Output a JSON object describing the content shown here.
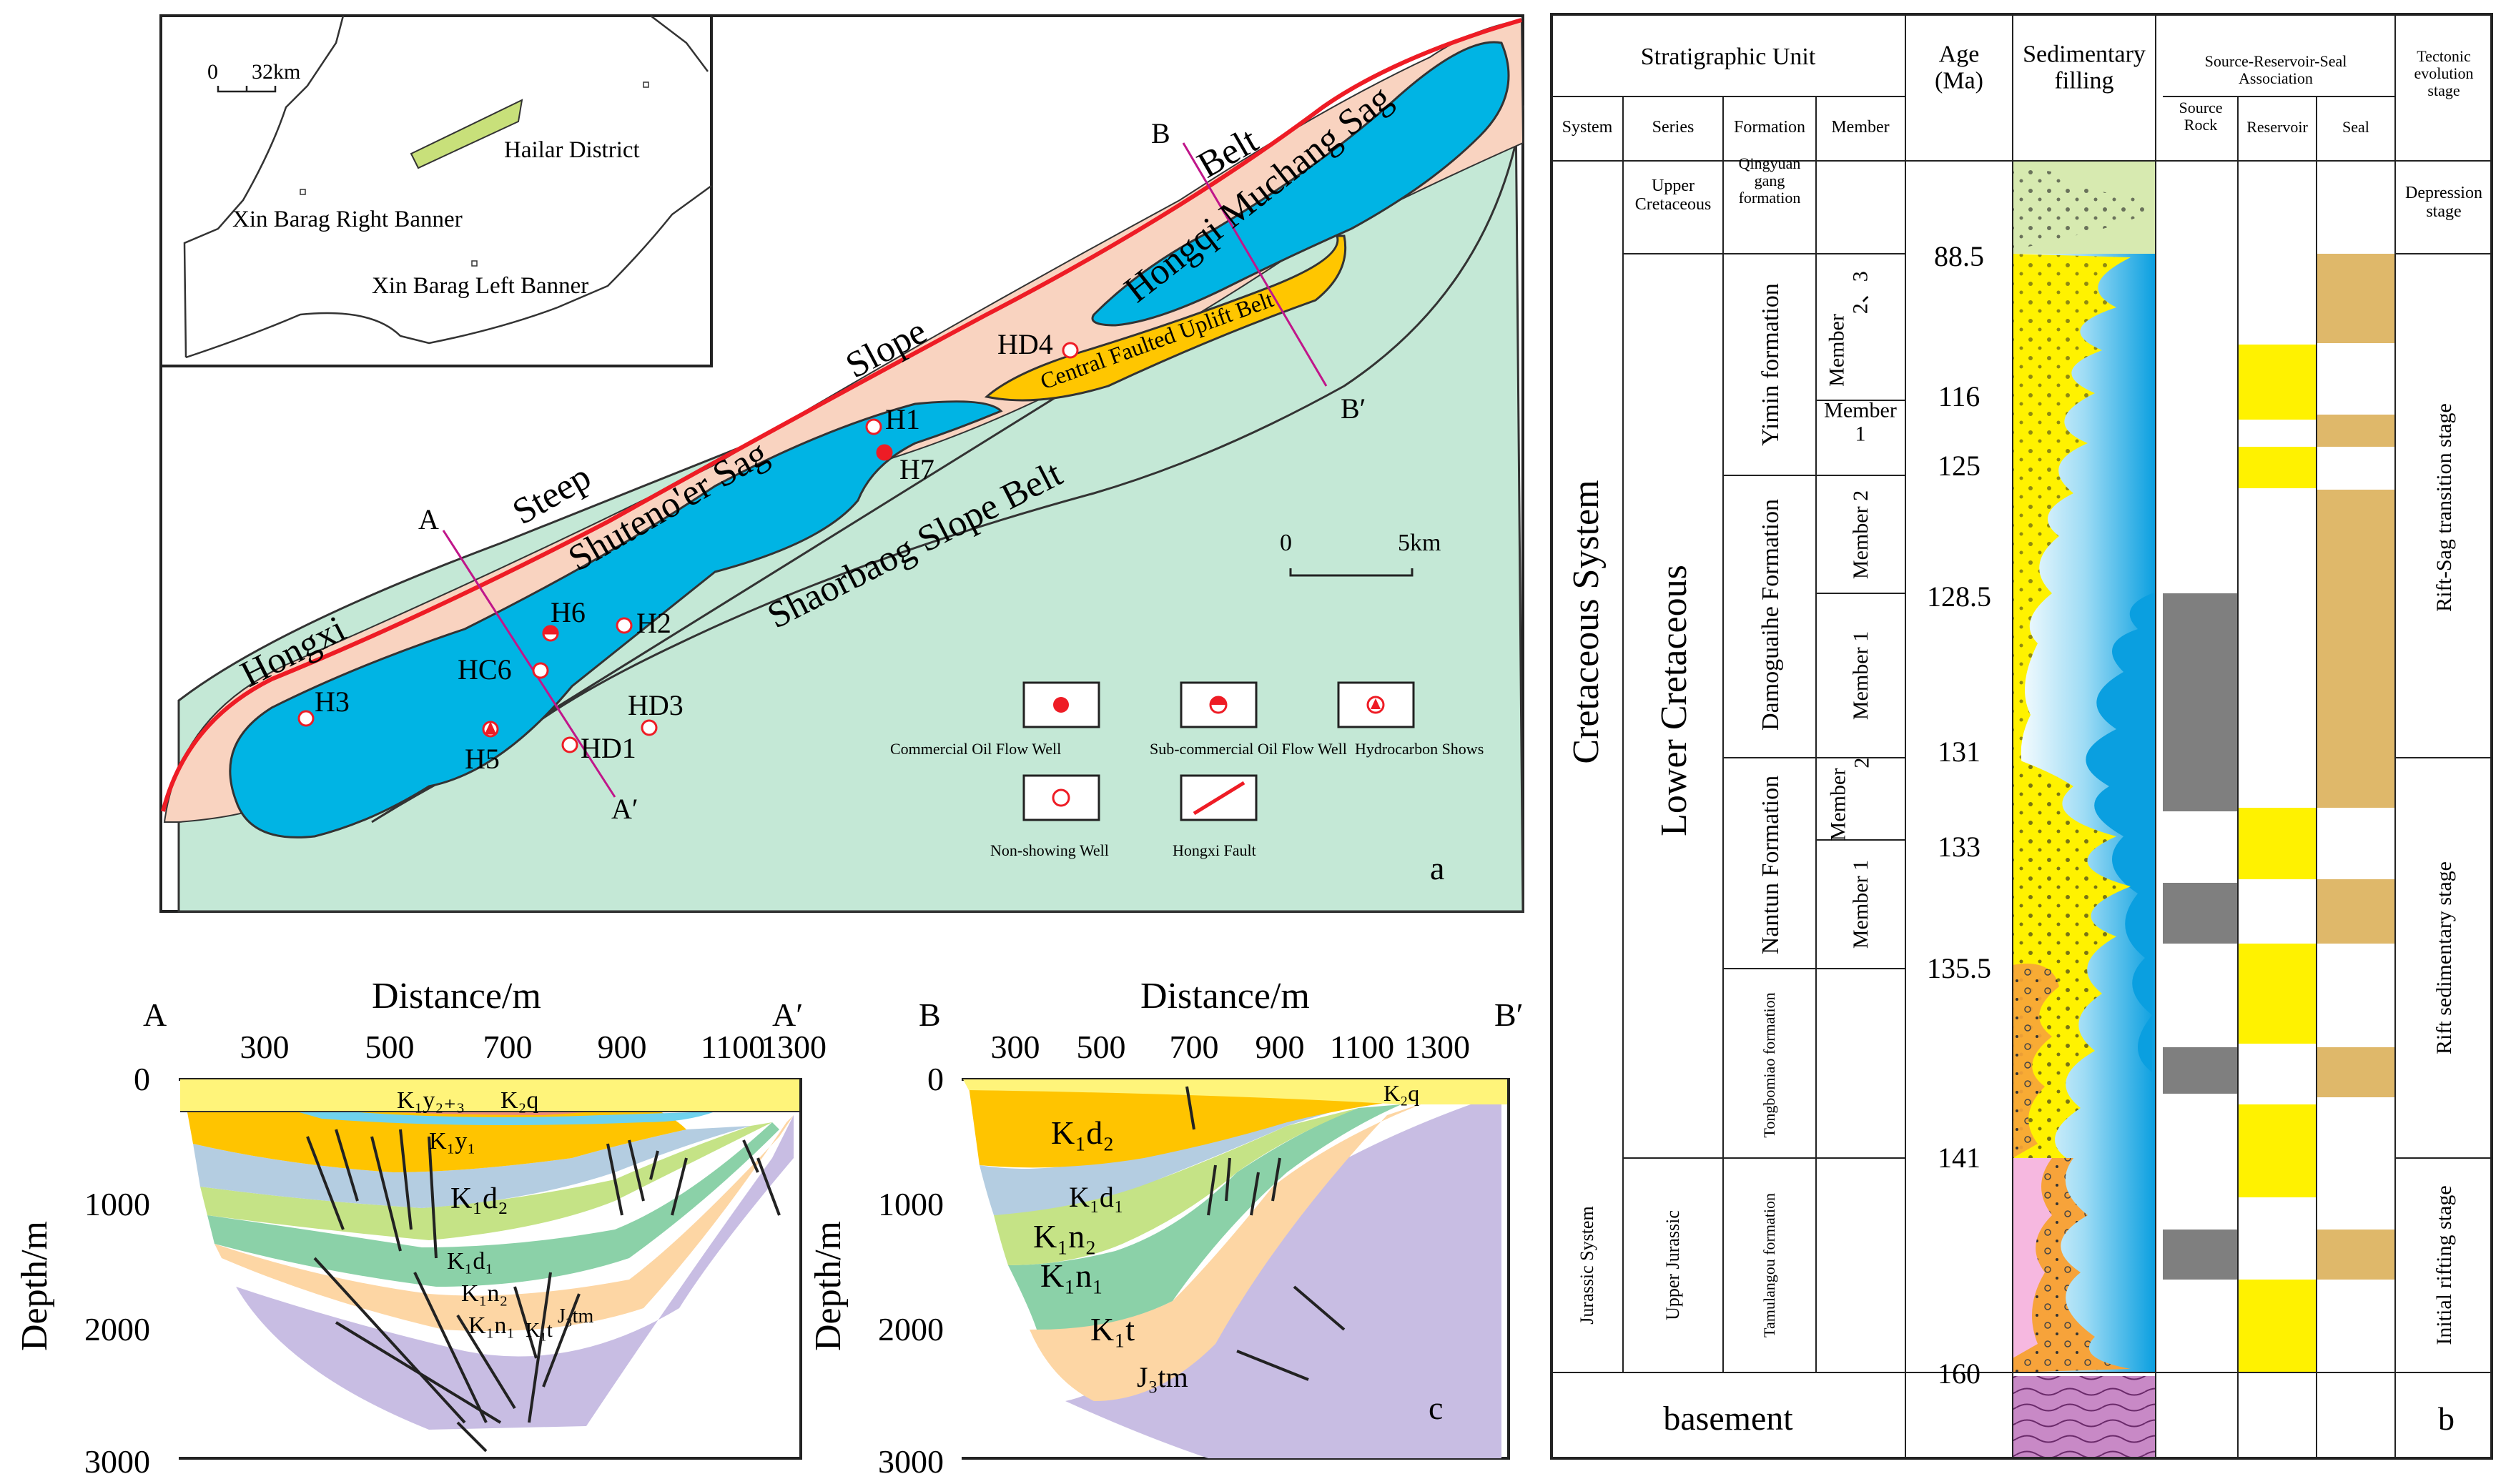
{
  "colors": {
    "steep_slope": "#f9d3c0",
    "sag": "#00b4e4",
    "uplift": "#ffc600",
    "slope_belt": "#c4e8d6",
    "fault": "#ee1c25",
    "section_line": "#c0168a",
    "district": "#c8e07a",
    "source_rock": "#7f7f7f",
    "reservoir": "#fff200",
    "seal": "#dfb86a"
  },
  "map": {
    "panel_label": "a",
    "inset_scale": [
      "0",
      "32km"
    ],
    "inset_places": [
      "Hailar District",
      "Xin Barag Right Banner",
      "Xin Barag Left Banner"
    ],
    "scale": [
      "0",
      "5km"
    ],
    "belt_labels": {
      "hongxi": "Hongxi",
      "steep": "Steep",
      "slope": "Slope",
      "belt": "Belt",
      "shuteno": "Shuteno'er Sag",
      "hongqi": "Hongqi Muchang Sag",
      "uplift": "Central Faulted Uplift Belt",
      "shaorbaog": "Shaorbaog Slope Belt"
    },
    "section_ends": {
      "a": "A",
      "a_prime": "A′",
      "b": "B",
      "b_prime": "B′"
    },
    "wells": {
      "h1": "H1",
      "h7": "H7",
      "h6": "H6",
      "h2": "H2",
      "h3": "H3",
      "h5": "H5",
      "hc6": "HC6",
      "hd1": "HD1",
      "hd3": "HD3",
      "hd4": "HD4"
    },
    "legend": {
      "commercial": "Commercial Oil Flow Well",
      "subcommercial": "Sub-commercial Oil Flow Well",
      "shows": "Hydrocarbon Shows",
      "nonshowing": "Non-showing Well",
      "fault": "Hongxi Fault"
    }
  },
  "sections": {
    "panel_label": "c",
    "xlabel": "Distance/m",
    "ylabel": "Depth/m",
    "xticks": [
      "300",
      "500",
      "700",
      "900",
      "1100",
      "1300"
    ],
    "yticks": [
      "0",
      "1000",
      "2000",
      "3000"
    ],
    "aa": {
      "start": "A",
      "end": "A′",
      "units": [
        "K₁y₂₊₃",
        "K₂q",
        "K₁y₁",
        "K₁d₂",
        "K₁d₁",
        "K₁n₂",
        "K₁n₁",
        "K₁t",
        "J₃tm"
      ]
    },
    "bb": {
      "start": "B",
      "end": "B′",
      "units": [
        "K₂q",
        "K₁d₂",
        "K₁d₁",
        "K₁n₂",
        "K₁n₁",
        "K₁t",
        "J₃tm"
      ]
    }
  },
  "column": {
    "panel_label": "b",
    "headers": {
      "strat_unit": "Stratigraphic Unit",
      "system": "System",
      "series": "Series",
      "formation": "Formation",
      "member": "Member",
      "age": "Age\n(Ma)",
      "filling": "Sedimentary\nfilling",
      "srs": "Source-Reservoir-Seal\nAssociation",
      "source": "Source\nRock",
      "reservoir": "Reservoir",
      "seal": "Seal",
      "tectonic": "Tectonic\nevolution\nstage"
    },
    "systems": [
      "Cretaceous System",
      "Jurassic System"
    ],
    "series": [
      "Upper\nCretaceous",
      "Lower Cretaceous",
      "Upper Jurassic"
    ],
    "formations": [
      "Qingyuan\ngang\nformation",
      "Yimin formation",
      "Damoguaihe Formation",
      "Nantun Formation",
      "Tongbomiao formation",
      "Tamulangou formation"
    ],
    "members": [
      "Member\n2、3",
      "Member\n1",
      "Member 2",
      "Member 1",
      "Member\n2",
      "Member 1"
    ],
    "ages": [
      "88.5",
      "116",
      "125",
      "128.5",
      "131",
      "133",
      "135.5",
      "141",
      "160"
    ],
    "basement": "basement",
    "stages": [
      "Depression\nstage",
      "Rift-Sag  transition stage",
      "Rift sedimentary stage",
      "Initial rifting stage"
    ]
  }
}
